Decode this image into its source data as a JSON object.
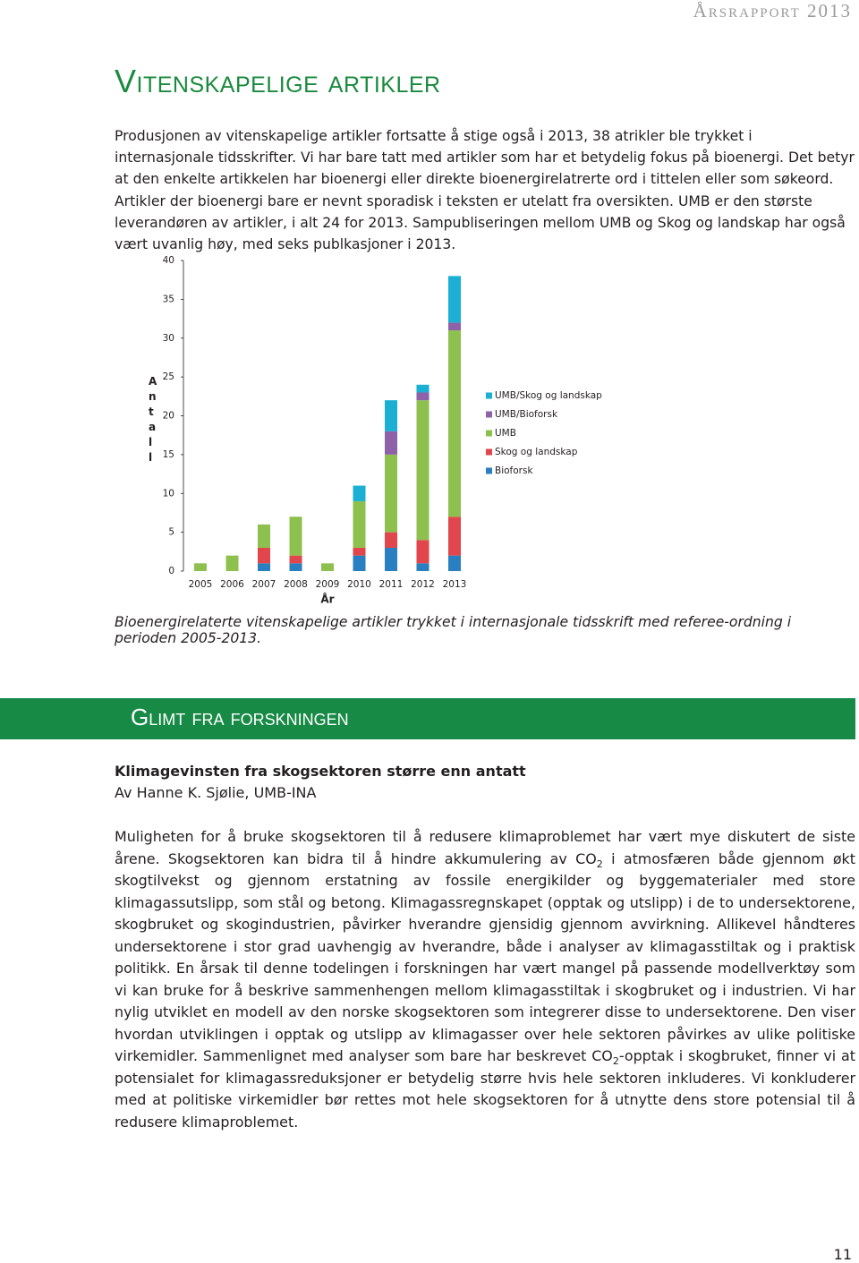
{
  "header": "Årsrapport 2013",
  "title": "Vitenskapelige artikler",
  "intro": "Produsjonen av vitenskapelige artikler fortsatte å stige også i 2013, 38 atrikler ble trykket i internasjonale tidsskrifter. Vi har bare tatt med artikler som har et betydelig fokus på bioenergi. Det betyr at den enkelte artikkelen har bioenergi eller direkte bioenergirelatrerte ord i tittelen eller som søkeord. Artikler der bioenergi bare er nevnt sporadisk i teksten er utelatt fra oversikten. UMB er den største leverandøren av artikler, i alt 24 for 2013. Sampubliseringen mellom UMB og Skog og landskap har også vært uvanlig høy, med seks publkasjoner i 2013.",
  "chart_data": {
    "type": "stacked-bar",
    "y_label": "Antall",
    "x_label": "År",
    "categories": [
      "2005",
      "2006",
      "2007",
      "2008",
      "2009",
      "2010",
      "2011",
      "2012",
      "2013"
    ],
    "series": [
      {
        "name": "Bioforsk",
        "color": "#2a7fc1",
        "values": [
          0,
          0,
          1,
          1,
          0,
          2,
          3,
          1,
          2
        ]
      },
      {
        "name": "Skog og landskap",
        "color": "#e0464b",
        "values": [
          0,
          0,
          2,
          1,
          0,
          1,
          2,
          3,
          5
        ]
      },
      {
        "name": "UMB",
        "color": "#8dc04e",
        "values": [
          1,
          2,
          3,
          5,
          1,
          6,
          10,
          18,
          24
        ]
      },
      {
        "name": "UMB/Bioforsk",
        "color": "#8d62a8",
        "values": [
          0,
          0,
          0,
          0,
          0,
          0,
          3,
          1,
          1
        ]
      },
      {
        "name": "UMB/Skog og landskap",
        "color": "#1aafd3",
        "values": [
          0,
          0,
          0,
          0,
          0,
          2,
          4,
          1,
          6
        ]
      }
    ],
    "ylim": [
      0,
      40
    ],
    "yticks": [
      0,
      5,
      10,
      15,
      20,
      25,
      30,
      35,
      40
    ],
    "grid": false
  },
  "caption": "Bioenergirelaterte vitenskapelige artikler trykket i internasjonale tidsskrift med referee-ordning i perioden 2005-2013.",
  "section": {
    "title": "Glimt fra forskningen"
  },
  "article": {
    "heading": "Klimagevinsten fra skogsektoren større enn antatt",
    "author": "Av Hanne K. Sjølie, UMB-INA",
    "body_parts": [
      "Muligheten for å bruke skogsektoren til å redusere klimaproblemet har vært mye diskutert de siste årene. Skogsektoren kan bidra til å hindre akkumulering av CO",
      "2",
      " i atmosfæren både gjennom økt skogtilvekst og gjennom erstatning av fossile energikilder og byggematerialer med store klimagassutslipp, som stål og betong. Klimagassregnskapet (opptak og utslipp) i de to undersektorene, skogbruket og skogindustrien, påvirker hverandre gjensidig gjennom avvirkning. Allikevel håndteres undersektorene i stor grad uavhengig av hverandre, både i analyser av klimagasstiltak og i praktisk politikk. En årsak til denne todelingen i forskningen har vært mangel på passende modellverktøy som vi kan bruke for å beskrive sammenhengen mellom klimagasstiltak i skogbruket og i industrien. Vi har nylig utviklet en modell av den norske skogsektoren som integrerer disse to undersektorene. Den viser hvordan utviklingen i opptak og utslipp av klimagasser over hele sektoren påvirkes av ulike politiske virkemidler. Sammenlignet med analyser som bare har beskrevet CO",
      "2",
      "-opptak i skogbruket, finner vi at potensialet for klimagassreduksjoner er betydelig større hvis hele sektoren inkluderes. Vi konkluderer med at politiske virkemidler bør rettes mot hele skogsektoren for å utnytte dens store potensial til å redusere klimaproblemet."
    ]
  },
  "page_number": "11"
}
